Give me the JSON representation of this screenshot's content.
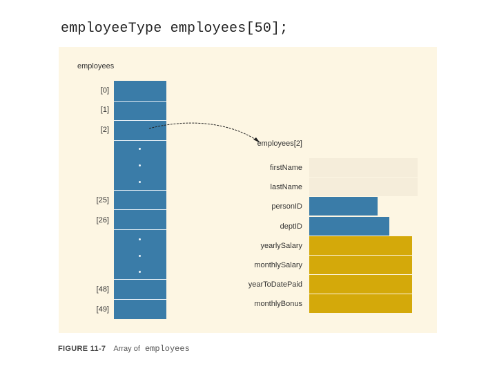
{
  "heading": {
    "code": "employeeType employees[50];"
  },
  "figure": {
    "array_label": "employees",
    "indices": [
      {
        "label": "[0]"
      },
      {
        "label": "[1]"
      },
      {
        "label": "[2]"
      },
      {
        "label": "[25]"
      },
      {
        "label": "[26]"
      },
      {
        "label": "[48]"
      },
      {
        "label": "[49]"
      }
    ],
    "struct_label": "employees[2]",
    "fields": [
      {
        "name": "firstName",
        "color": "#f5edda",
        "length_rel": 1.0
      },
      {
        "name": "lastName",
        "color": "#f5edda",
        "length_rel": 1.0
      },
      {
        "name": "personID",
        "color": "#3a7ca8",
        "length_rel": 0.63
      },
      {
        "name": "deptID",
        "color": "#3a7ca8",
        "length_rel": 0.74
      },
      {
        "name": "yearlySalary",
        "color": "#d4a90a",
        "length_rel": 0.95
      },
      {
        "name": "monthlySalary",
        "color": "#d4a90a",
        "length_rel": 0.95
      },
      {
        "name": "yearToDatePaid",
        "color": "#d4a90a",
        "length_rel": 0.95
      },
      {
        "name": "monthlyBonus",
        "color": "#d4a90a",
        "length_rel": 0.95
      }
    ]
  },
  "caption": {
    "figure_number": "FIGURE 11-7",
    "text": "Array of",
    "code": "employees"
  },
  "colors": {
    "panel": "#fdf6e3",
    "array": "#3a7ca8",
    "accent": "#d4a90a"
  }
}
